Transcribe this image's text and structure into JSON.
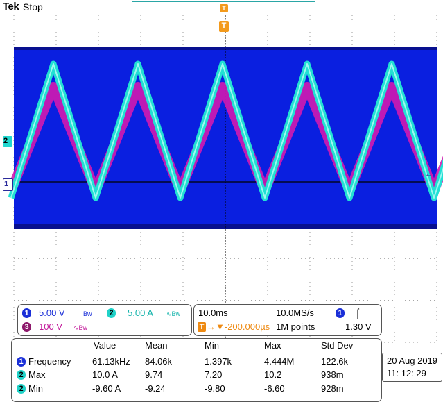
{
  "header": {
    "brand": "Tek",
    "acquisition_state": "Stop",
    "trigger_marker": "T"
  },
  "markers": {
    "ch2": "2",
    "ch1": "1",
    "trigger": "T",
    "right_level": "←"
  },
  "colors": {
    "background": "#ffffff",
    "graticule": "#999999",
    "envelope": "#0a1fe0",
    "envelope_dark": "#08108f",
    "ch2_trace": "#22e0d4",
    "ch3_trace": "#d21ab0",
    "trigger": "#f39a1c"
  },
  "waveform": {
    "cycles": 5,
    "period_divisions": 2.0
  },
  "channels": {
    "ch1": {
      "badge": "1",
      "scale": "5.00 V",
      "bw": "Bw"
    },
    "ch2": {
      "badge": "2",
      "scale": "5.00 A",
      "bw": "∿Bw"
    },
    "ch3": {
      "badge": "3",
      "scale": "100 V",
      "bw": "∿Bw"
    }
  },
  "timebase": {
    "scale": "10.0ms",
    "sample_rate": "10.0MS/s",
    "trigger_symbol": "T",
    "trigger_delay": "→▼-200.000µs",
    "record_length": "1M points",
    "trigger_source_badge": "1",
    "trigger_slope": "⌠",
    "trigger_level": "1.30 V"
  },
  "measurements": {
    "headers": [
      "Value",
      "Mean",
      "Min",
      "Max",
      "Std Dev"
    ],
    "rows": [
      {
        "badge": "1",
        "label": "Frequency",
        "value": "61.13kHz",
        "mean": "84.06k",
        "min": "1.397k",
        "max": "4.444M",
        "std": "122.6k"
      },
      {
        "badge": "2",
        "label": "Max",
        "value": "10.0 A",
        "mean": "9.74",
        "min": "7.20",
        "max": "10.2",
        "std": "938m"
      },
      {
        "badge": "2",
        "label": "Min",
        "value": "-9.60 A",
        "mean": "-9.24",
        "min": "-9.80",
        "max": "-6.60",
        "std": "928m"
      }
    ]
  },
  "datetime": {
    "date": "20 Aug  2019",
    "time": "11: 12: 29"
  }
}
